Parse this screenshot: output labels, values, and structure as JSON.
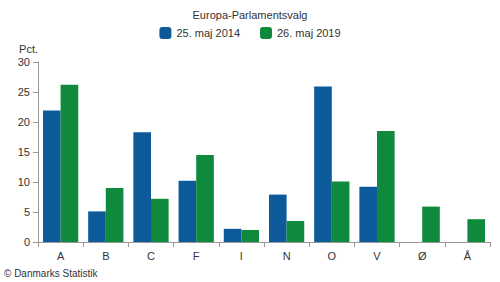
{
  "chart_data": {
    "type": "bar",
    "title": "Europa-Parlamentsvalg",
    "ylabel": "Pct.",
    "source": "© Danmarks Statistik",
    "categories": [
      "A",
      "B",
      "C",
      "F",
      "I",
      "N",
      "O",
      "V",
      "Ø",
      "Å"
    ],
    "series": [
      {
        "name": "25. maj 2014",
        "color": "#0d5a9b",
        "values": [
          21.9,
          5.1,
          18.3,
          10.2,
          2.2,
          7.9,
          25.9,
          9.2,
          null,
          null
        ]
      },
      {
        "name": "26. maj 2019",
        "color": "#0f8a3c",
        "values": [
          26.2,
          9.0,
          7.2,
          14.5,
          2.0,
          3.5,
          10.1,
          18.5,
          5.9,
          3.8
        ]
      }
    ],
    "ylim": [
      0,
      30
    ],
    "yticks": [
      0,
      5,
      10,
      15,
      20,
      25,
      30
    ],
    "grid": false,
    "legend": "top"
  }
}
